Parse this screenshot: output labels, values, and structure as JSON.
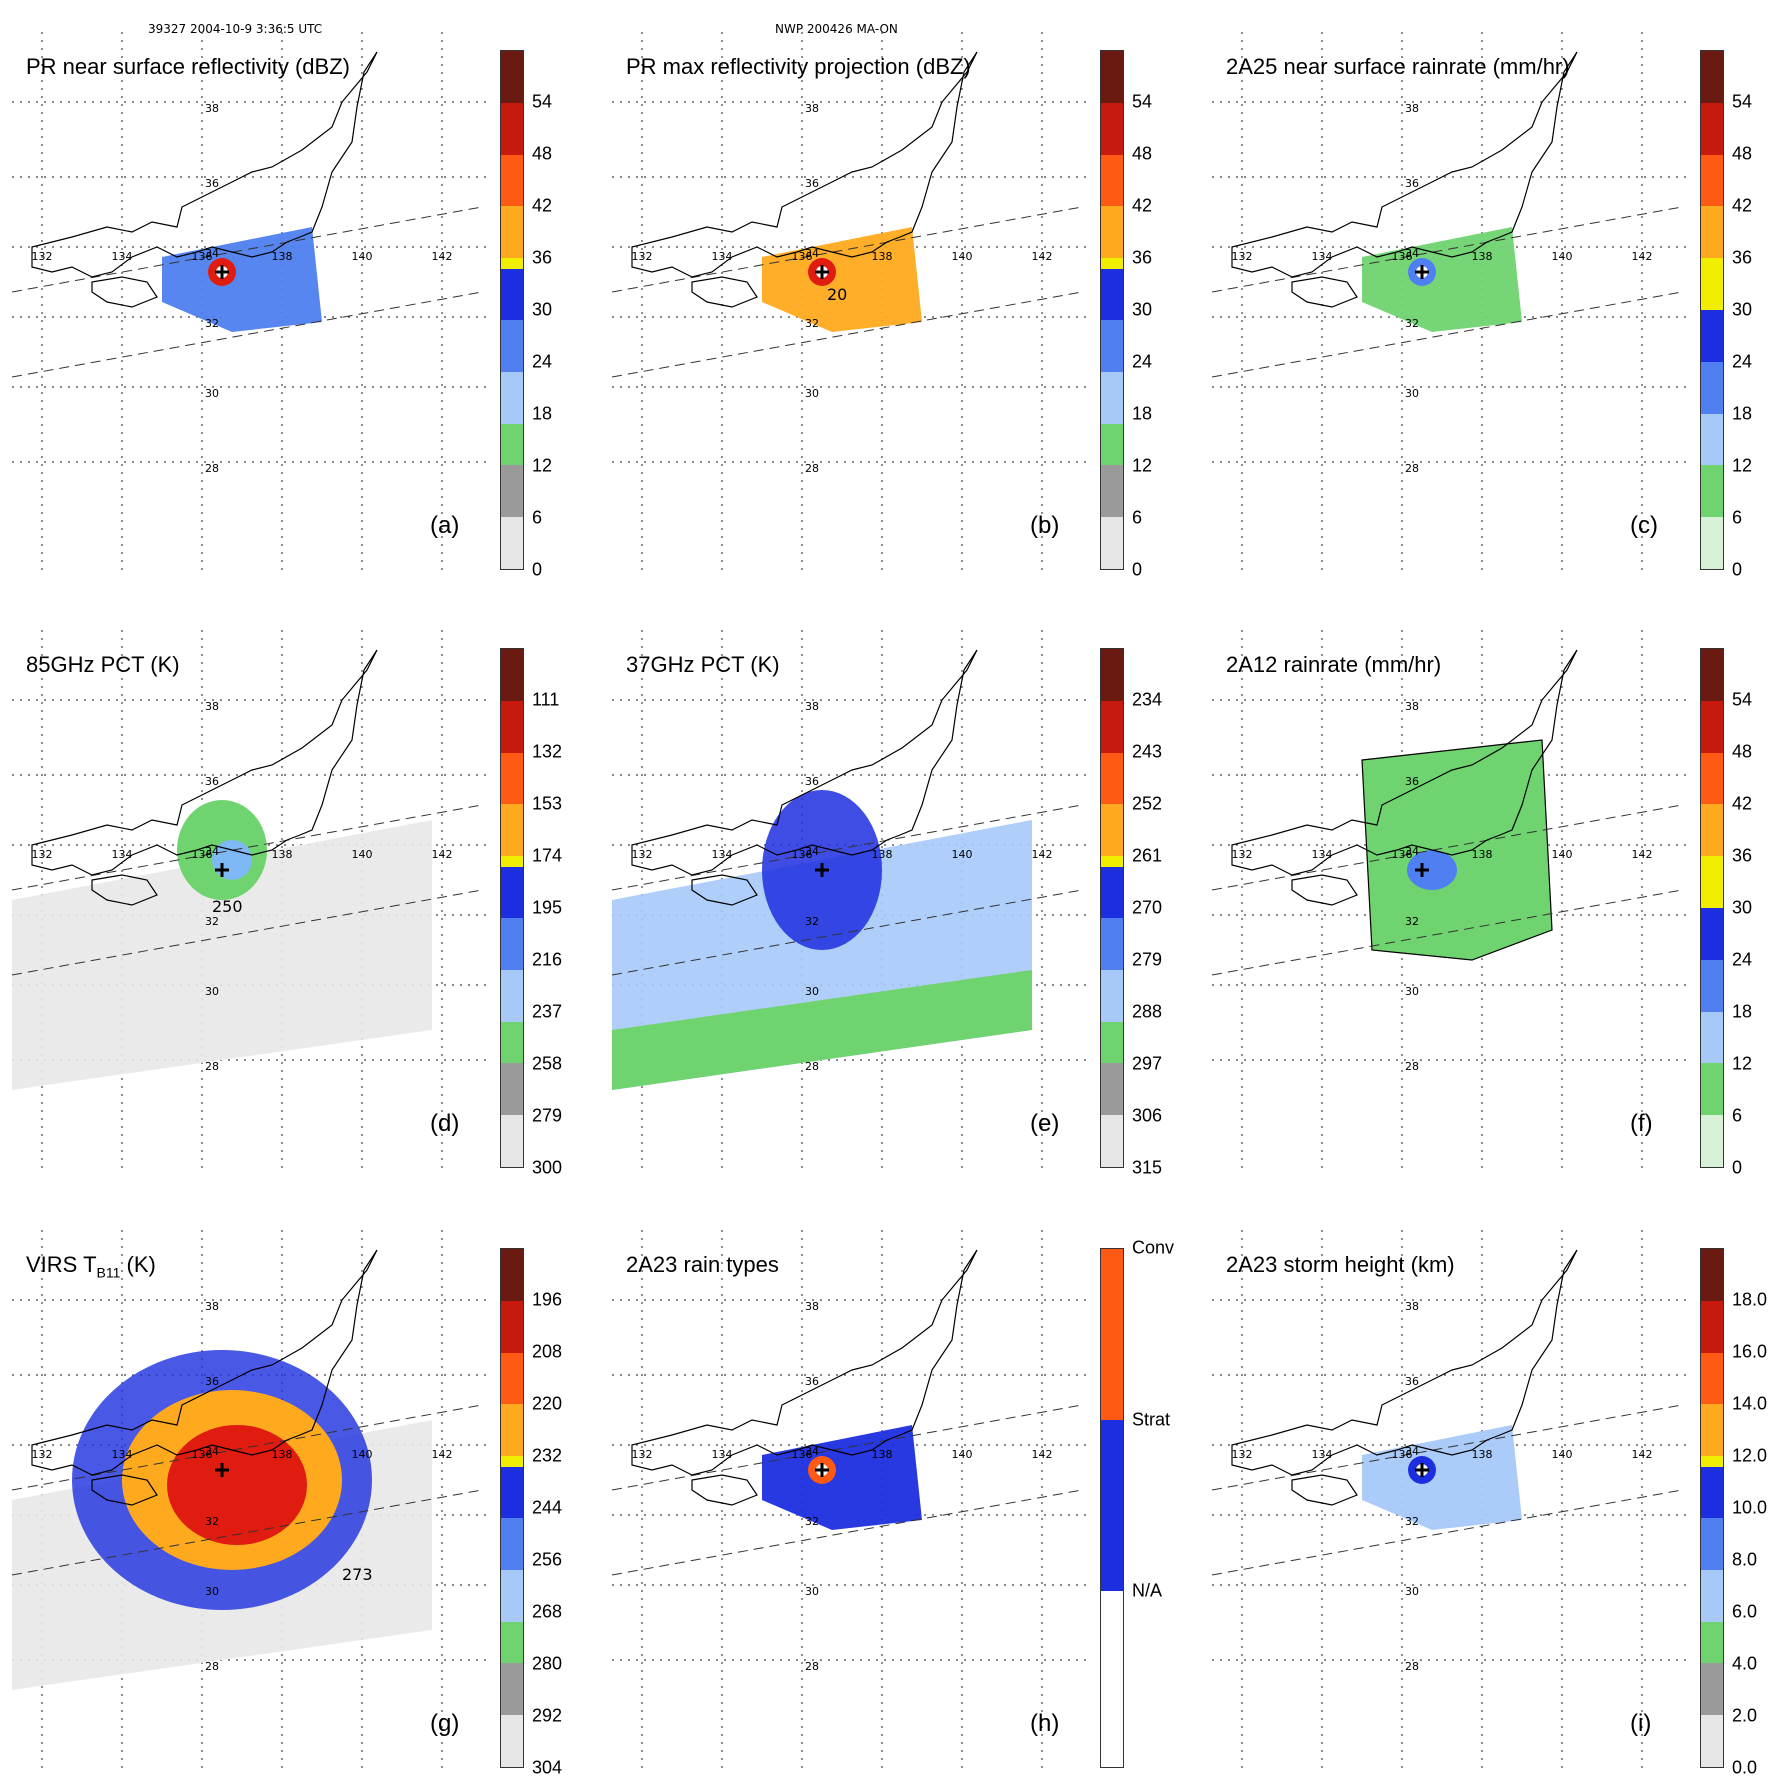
{
  "header": {
    "left": "39327 2004-10-9 3:36:5 UTC",
    "center": "NWP 200426 MA-ON"
  },
  "grid": {
    "lon_labels": [
      "132",
      "134",
      "136",
      "138",
      "140",
      "142"
    ],
    "lat_labels": [
      "38",
      "36",
      "34",
      "32",
      "30",
      "28"
    ]
  },
  "colors": {
    "green": "#6fd36f",
    "lightblue": "#7eb8f5",
    "blue": "#1d2ee0",
    "yellow": "#f2ee00",
    "orange": "#ff9a1a",
    "red": "#e01b0f",
    "darkred": "#6b0f0b",
    "gray": "#cfcfcf"
  },
  "panels": [
    {
      "id": "a",
      "title": "PR near surface reflectivity (dBZ)",
      "label": "(a)",
      "ticks": [
        "54",
        "48",
        "42",
        "36",
        "30",
        "24",
        "18",
        "12",
        "6",
        "0"
      ],
      "scale": "refl"
    },
    {
      "id": "b",
      "title": "PR max reflectivity projection (dBZ)",
      "label": "(b)",
      "ticks": [
        "54",
        "48",
        "42",
        "36",
        "30",
        "24",
        "18",
        "12",
        "6",
        "0"
      ],
      "scale": "refl"
    },
    {
      "id": "c",
      "title": "2A25 near surface rainrate (mm/hr)",
      "label": "(c)",
      "ticks": [
        "54",
        "48",
        "42",
        "36",
        "30",
        "24",
        "18",
        "12",
        "6",
        "0"
      ],
      "scale": "rain"
    },
    {
      "id": "d",
      "title": "85GHz PCT (K)",
      "label": "(d)",
      "ticks": [
        "111",
        "132",
        "153",
        "174",
        "195",
        "216",
        "237",
        "258",
        "279",
        "300"
      ],
      "scale": "pct"
    },
    {
      "id": "e",
      "title": "37GHz PCT (K)",
      "label": "(e)",
      "ticks": [
        "234",
        "243",
        "252",
        "261",
        "270",
        "279",
        "288",
        "297",
        "306",
        "315"
      ],
      "scale": "pct"
    },
    {
      "id": "f",
      "title": "2A12 rainrate (mm/hr)",
      "label": "(f)",
      "ticks": [
        "54",
        "48",
        "42",
        "36",
        "30",
        "24",
        "18",
        "12",
        "6",
        "0"
      ],
      "scale": "rain"
    },
    {
      "id": "g",
      "title": "VIRS T",
      "title_sub": "B11",
      "title_tail": " (K)",
      "label": "(g)",
      "ticks": [
        "196",
        "208",
        "220",
        "232",
        "244",
        "256",
        "268",
        "280",
        "292",
        "304"
      ],
      "scale": "pct"
    },
    {
      "id": "h",
      "title": "2A23 rain types",
      "label": "(h)",
      "ticks": [
        "Conv",
        "Strat",
        "N/A"
      ],
      "scale": "types"
    },
    {
      "id": "i",
      "title": "2A23 storm height (km)",
      "label": "(i)",
      "ticks": [
        "18.0",
        "16.0",
        "14.0",
        "12.0",
        "10.0",
        "8.0",
        "6.0",
        "4.0",
        "2.0",
        "0.0"
      ],
      "scale": "height"
    }
  ],
  "contour_labels": {
    "b": "20",
    "d": "250",
    "g": "273"
  }
}
